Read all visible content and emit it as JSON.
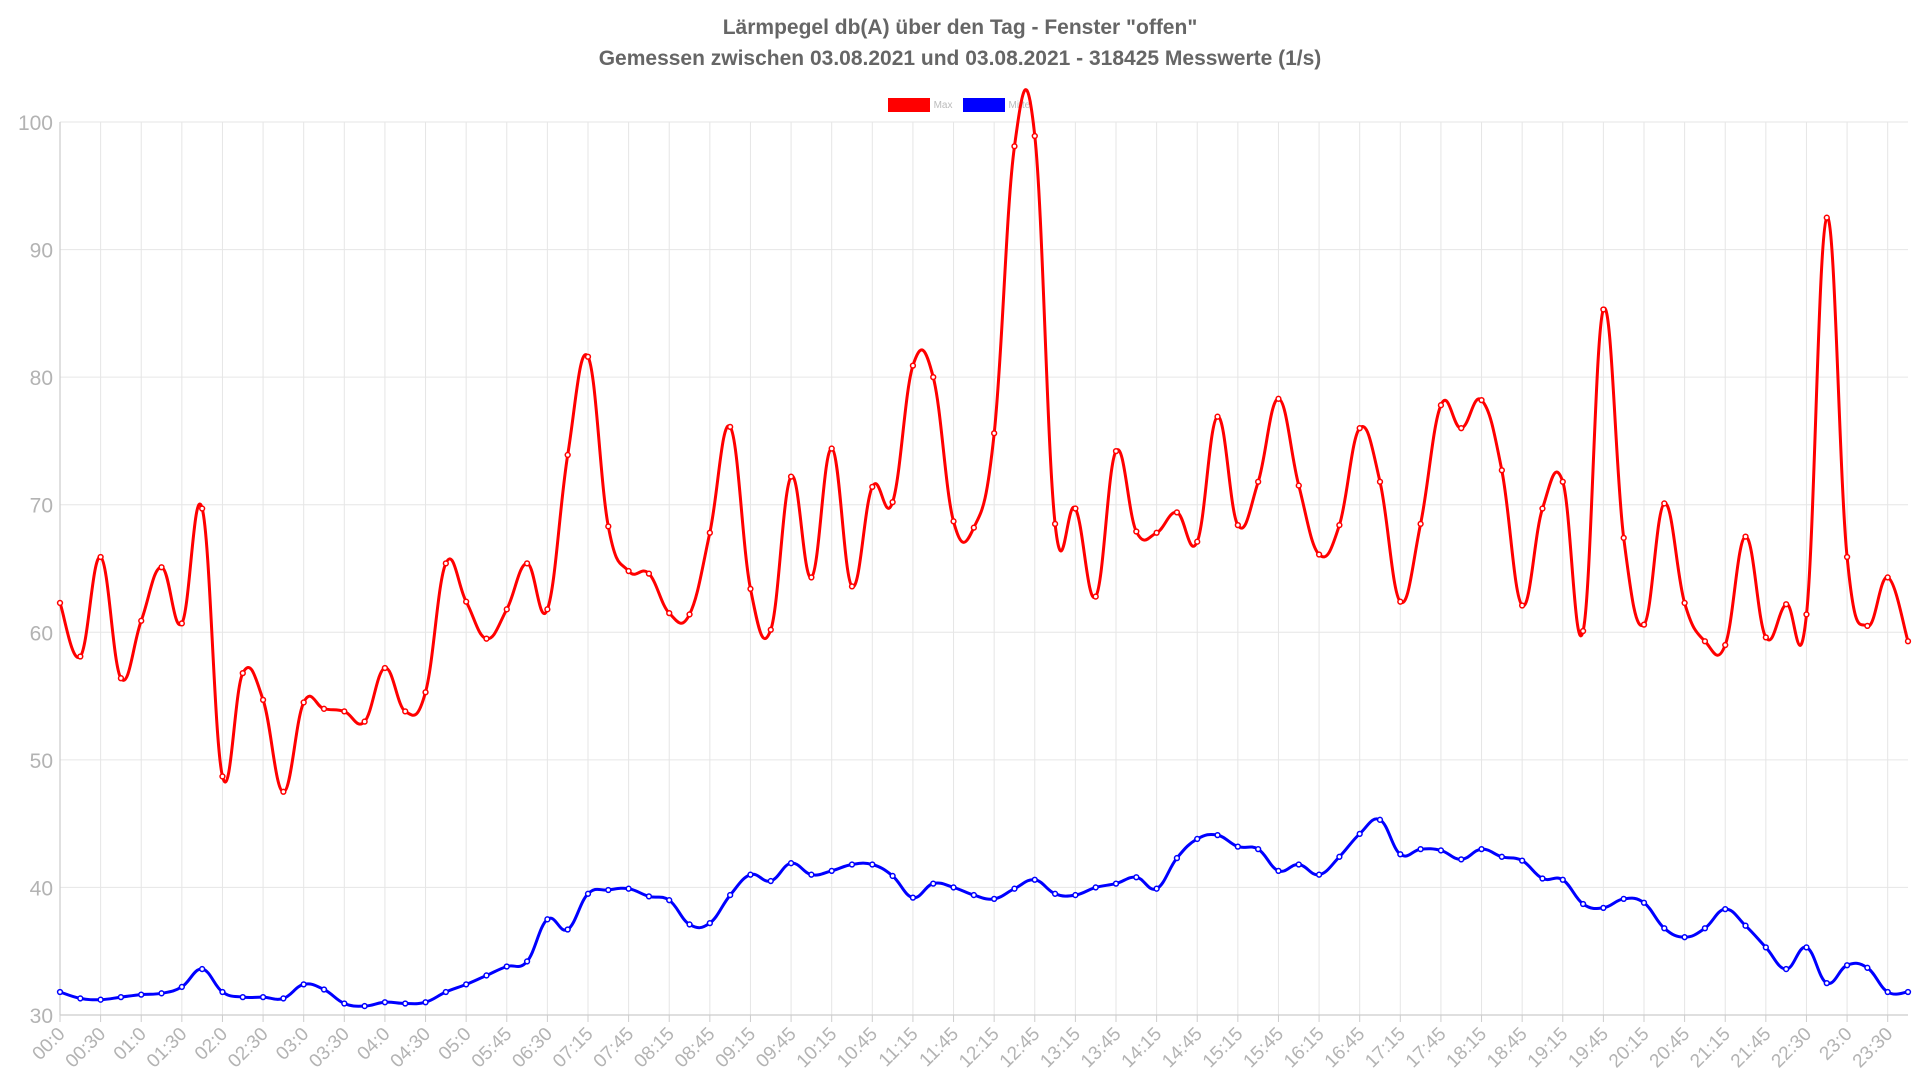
{
  "chart_data": {
    "type": "line",
    "title": "Lärmpegel db(A) über den Tag - Fenster \"offen\"",
    "subtitle": "Gemessen zwischen 03.08.2021 und 03.08.2021 - 318425 Messwerte (1/s)",
    "ylim": [
      30,
      100
    ],
    "yticks": [
      30,
      40,
      50,
      60,
      70,
      80,
      90,
      100
    ],
    "grid": true,
    "legend_position": "top-center",
    "x": [
      "00:0",
      "00:15",
      "00:30",
      "00:45",
      "01:0",
      "01:15",
      "01:30",
      "01:45",
      "02:0",
      "02:15",
      "02:30",
      "02:45",
      "03:0",
      "03:15",
      "03:30",
      "03:45",
      "04:0",
      "04:15",
      "04:30",
      "04:45",
      "05:0",
      "05:15",
      "05:45",
      "06:0",
      "06:30",
      "06:45",
      "07:15",
      "07:30",
      "07:45",
      "08:0",
      "08:15",
      "08:30",
      "08:45",
      "09:0",
      "09:15",
      "09:30",
      "09:45",
      "10:0",
      "10:15",
      "10:30",
      "10:45",
      "11:0",
      "11:15",
      "11:30",
      "11:45",
      "12:0",
      "12:15",
      "12:30",
      "12:45",
      "13:0",
      "13:15",
      "13:30",
      "13:45",
      "14:0",
      "14:15",
      "14:30",
      "14:45",
      "15:0",
      "15:15",
      "15:30",
      "15:45",
      "16:0",
      "16:15",
      "16:30",
      "16:45",
      "17:0",
      "17:15",
      "17:30",
      "17:45",
      "18:0",
      "18:15",
      "18:30",
      "18:45",
      "19:0",
      "19:15",
      "19:30",
      "19:45",
      "20:0",
      "20:15",
      "20:30",
      "20:45",
      "21:0",
      "21:15",
      "21:30",
      "21:45",
      "22:0",
      "22:30",
      "22:45",
      "23:0",
      "23:15",
      "23:30",
      "23:45"
    ],
    "x_tick_labels": [
      "00:0",
      "00:30",
      "01:0",
      "01:30",
      "02:0",
      "02:30",
      "03:0",
      "03:30",
      "04:0",
      "04:30",
      "05:0",
      "05:45",
      "06:30",
      "07:15",
      "07:45",
      "08:15",
      "08:45",
      "09:15",
      "09:45",
      "10:15",
      "10:45",
      "11:15",
      "11:45",
      "12:15",
      "12:45",
      "13:15",
      "13:45",
      "14:15",
      "14:45",
      "15:15",
      "15:45",
      "16:15",
      "16:45",
      "17:15",
      "17:45",
      "18:15",
      "18:45",
      "19:15",
      "19:45",
      "20:15",
      "20:45",
      "21:15",
      "21:45",
      "22:30",
      "23:0",
      "23:30"
    ],
    "series": [
      {
        "name": "Max",
        "color": "#ff0000",
        "values": [
          62.3,
          58.1,
          65.9,
          56.4,
          60.9,
          65.1,
          60.7,
          69.7,
          48.7,
          56.8,
          54.7,
          47.5,
          54.5,
          54.0,
          53.8,
          53.0,
          57.2,
          53.8,
          55.3,
          65.4,
          62.4,
          59.5,
          61.8,
          65.4,
          61.8,
          73.9,
          81.6,
          68.3,
          64.8,
          64.6,
          61.5,
          61.4,
          67.8,
          76.1,
          63.4,
          60.2,
          72.2,
          64.3,
          74.4,
          63.6,
          71.4,
          70.2,
          80.9,
          80.0,
          68.7,
          68.2,
          75.6,
          98.1,
          98.9,
          68.5,
          69.7,
          62.8,
          74.2,
          67.9,
          67.8,
          69.4,
          67.1,
          76.9,
          68.4,
          71.8,
          78.3,
          71.5,
          66.1,
          68.4,
          76.0,
          71.8,
          62.4,
          68.5,
          77.8,
          76.0,
          78.2,
          72.7,
          62.1,
          69.7,
          71.8,
          60.1,
          85.3,
          67.4,
          60.6,
          70.1,
          62.3,
          59.3,
          59.0,
          67.5,
          59.6,
          62.2,
          61.4,
          92.5,
          65.9,
          60.5,
          64.3,
          59.3
        ]
      },
      {
        "name": "Mittel",
        "color": "#0000ff",
        "values": [
          31.8,
          31.3,
          31.2,
          31.4,
          31.6,
          31.7,
          32.2,
          33.6,
          31.8,
          31.4,
          31.4,
          31.3,
          32.4,
          32.0,
          30.9,
          30.7,
          31.0,
          30.9,
          31.0,
          31.8,
          32.4,
          33.1,
          33.8,
          34.2,
          37.5,
          36.7,
          39.5,
          39.8,
          39.9,
          39.3,
          39.0,
          37.1,
          37.2,
          39.4,
          41.0,
          40.5,
          41.9,
          41.0,
          41.3,
          41.8,
          41.8,
          40.9,
          39.2,
          40.3,
          40.0,
          39.4,
          39.1,
          39.9,
          40.6,
          39.5,
          39.4,
          40.0,
          40.3,
          40.8,
          39.9,
          42.3,
          43.8,
          44.1,
          43.2,
          43.0,
          41.3,
          41.8,
          41.0,
          42.4,
          44.2,
          45.3,
          42.6,
          43.0,
          42.9,
          42.2,
          43.0,
          42.4,
          42.1,
          40.7,
          40.6,
          38.7,
          38.4,
          39.1,
          38.8,
          36.8,
          36.1,
          36.8,
          38.3,
          37.0,
          35.3,
          33.6,
          35.3,
          32.5,
          33.9,
          33.7,
          31.8,
          31.8
        ]
      }
    ]
  }
}
